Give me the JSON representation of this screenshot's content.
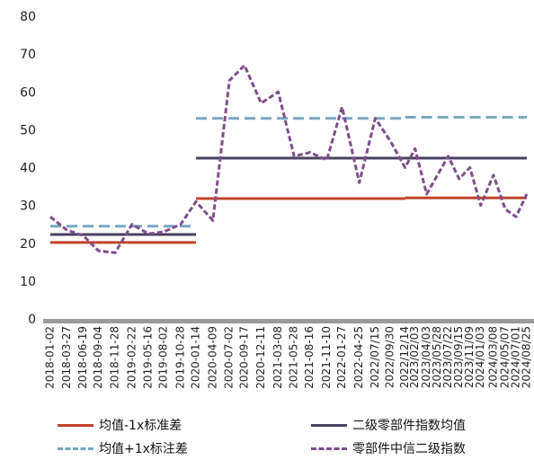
{
  "chart_data": {
    "type": "line",
    "ylim": [
      0,
      80
    ],
    "yticks": [
      0,
      10,
      20,
      30,
      40,
      50,
      60,
      70,
      80
    ],
    "x_tick_labels": [
      "2018-01-02",
      "2018-03-27",
      "2018-06-19",
      "2018-09-04",
      "2018-11-28",
      "2019-02-22",
      "2019-05-16",
      "2019-08-02",
      "2019-10-28",
      "2020-01-14",
      "2020-04-09",
      "2020-07-02",
      "2020-09-17",
      "2020-12-11",
      "2021-03-08",
      "2021-05-28",
      "2021-08-16",
      "2021-11-10",
      "2022-01-27",
      "2022-04-25",
      "2022/07/15",
      "2022/09/30",
      "2022/12/14",
      "2023/02/03",
      "2023/04/03",
      "2023/05/28",
      "2023/07/22",
      "2023/09/15",
      "2023/11/09",
      "2024/01/03",
      "2024/03/08",
      "2024/05/07",
      "2024/07/01",
      "2024/08/25"
    ],
    "series": [
      {
        "name": "均值-1x标准差",
        "color": "#c0442b",
        "style": "solid",
        "segments": [
          {
            "from": "2018-01-02",
            "to": "2020-01-14",
            "value": 20.2
          },
          {
            "from": "2020-01-14",
            "to": "2022/12/14",
            "value": 31.8
          },
          {
            "from": "2022/12/14",
            "to": "2024/08/25",
            "value": 32.0
          }
        ]
      },
      {
        "name": "二级零部件指数均值",
        "color": "#4a4060",
        "style": "solid",
        "segments": [
          {
            "from": "2018-01-02",
            "to": "2020-01-14",
            "value": 22.3
          },
          {
            "from": "2020-01-14",
            "to": "2024/08/25",
            "value": 42.5
          }
        ]
      },
      {
        "name": "均值+1x标注差",
        "color": "#7aa6c2",
        "style": "dashed",
        "segments": [
          {
            "from": "2018-01-02",
            "to": "2020-01-14",
            "value": 24.5
          },
          {
            "from": "2020-01-14",
            "to": "2022/12/14",
            "value": 53.0
          },
          {
            "from": "2022/12/14",
            "to": "2024/08/25",
            "value": 53.3
          }
        ]
      },
      {
        "name": "零部件中信二级指数",
        "color": "#7e4e8c",
        "style": "dashed",
        "points": [
          [
            "2018-01-02",
            27
          ],
          [
            "2018-03-27",
            23.5
          ],
          [
            "2018-06-19",
            22
          ],
          [
            "2018-09-04",
            18
          ],
          [
            "2018-11-28",
            17.5
          ],
          [
            "2019-02-22",
            25
          ],
          [
            "2019-05-16",
            22.5
          ],
          [
            "2019-08-02",
            23
          ],
          [
            "2019-10-28",
            25
          ],
          [
            "2020-01-14",
            31
          ],
          [
            "2020-04-09",
            26
          ],
          [
            "2020-07-02",
            63
          ],
          [
            "2020-09-17",
            67
          ],
          [
            "2020-12-11",
            57
          ],
          [
            "2021-03-08",
            60
          ],
          [
            "2021-05-28",
            43
          ],
          [
            "2021-08-16",
            44
          ],
          [
            "2021-11-10",
            42
          ],
          [
            "2022-01-27",
            56
          ],
          [
            "2022-04-25",
            36
          ],
          [
            "2022/07/15",
            53
          ],
          [
            "2022/09/30",
            47
          ],
          [
            "2022/12/14",
            40
          ],
          [
            "2023/02/03",
            45
          ],
          [
            "2023/04/03",
            33
          ],
          [
            "2023/05/28",
            38
          ],
          [
            "2023/07/22",
            43
          ],
          [
            "2023/09/15",
            37
          ],
          [
            "2023/11/09",
            40
          ],
          [
            "2024/01/03",
            30
          ],
          [
            "2024/03/08",
            38
          ],
          [
            "2024/05/07",
            29
          ],
          [
            "2024/07/01",
            27
          ],
          [
            "2024/08/25",
            33
          ]
        ]
      }
    ]
  }
}
